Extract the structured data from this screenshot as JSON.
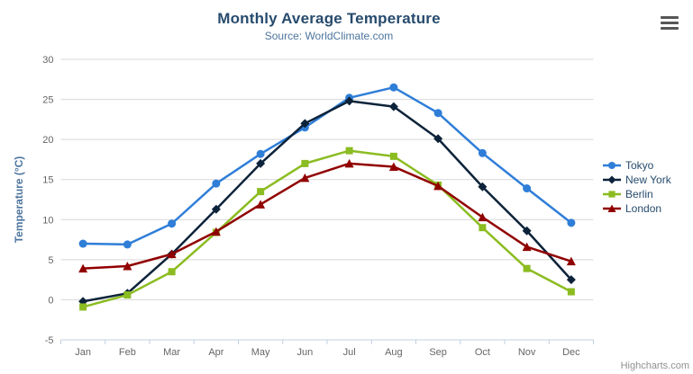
{
  "header": {
    "title": "Monthly Average Temperature",
    "subtitle": "Source: WorldClimate.com"
  },
  "export_menu": {
    "icon": "hamburger-menu-icon"
  },
  "credits": {
    "label": "Highcharts.com"
  },
  "theme": {
    "title_color": "#274b6d",
    "subtitle_color": "#4d759e",
    "axis_title_color": "#4d759e",
    "tick_label_color": "#666666",
    "legend_label_color": "#274b6d",
    "grid_color": "#d8d8d8",
    "axis_line_color": "#c0d0e0",
    "credits_color": "#909090",
    "background": "#ffffff"
  },
  "chart_data": {
    "type": "line",
    "title": "Monthly Average Temperature",
    "subtitle": "Source: WorldClimate.com",
    "xlabel": "",
    "ylabel": "Temperature (°C)",
    "ylim": [
      -5,
      30
    ],
    "ytick_step": 5,
    "yticks": [
      -5,
      0,
      5,
      10,
      15,
      20,
      25,
      30
    ],
    "grid": true,
    "legend_position": "right",
    "categories": [
      "Jan",
      "Feb",
      "Mar",
      "Apr",
      "May",
      "Jun",
      "Jul",
      "Aug",
      "Sep",
      "Oct",
      "Nov",
      "Dec"
    ],
    "series": [
      {
        "name": "Tokyo",
        "color": "#2f7ed8",
        "marker": "circle",
        "values": [
          7.0,
          6.9,
          9.5,
          14.5,
          18.2,
          21.5,
          25.2,
          26.5,
          23.3,
          18.3,
          13.9,
          9.6
        ]
      },
      {
        "name": "New York",
        "color": "#0d233a",
        "marker": "diamond",
        "values": [
          -0.2,
          0.8,
          5.7,
          11.3,
          17.0,
          22.0,
          24.8,
          24.1,
          20.1,
          14.1,
          8.6,
          2.5
        ]
      },
      {
        "name": "Berlin",
        "color": "#8bbc21",
        "marker": "square",
        "values": [
          -0.9,
          0.6,
          3.5,
          8.4,
          13.5,
          17.0,
          18.6,
          17.9,
          14.3,
          9.0,
          3.9,
          1.0
        ]
      },
      {
        "name": "London",
        "color": "#910000",
        "marker": "triangle",
        "values": [
          3.9,
          4.2,
          5.7,
          8.5,
          11.9,
          15.2,
          17.0,
          16.6,
          14.2,
          10.3,
          6.6,
          4.8
        ]
      }
    ]
  }
}
